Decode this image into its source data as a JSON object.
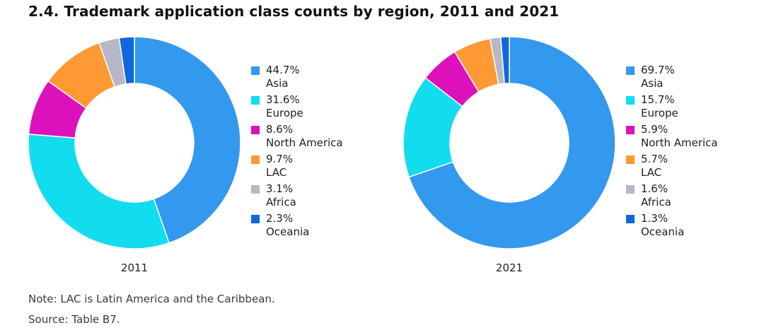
{
  "title": "2.4. Trademark application class counts by region, 2011 and 2021",
  "note": "Note: LAC is Latin America and the Caribbean.",
  "source": "Source: Table B7.",
  "chart_data": [
    {
      "type": "pie",
      "style": "donut",
      "title": "2011",
      "categories": [
        "Asia",
        "Europe",
        "North America",
        "LAC",
        "Africa",
        "Oceania"
      ],
      "values": [
        44.7,
        31.6,
        8.6,
        9.7,
        3.1,
        2.3
      ],
      "labels": [
        "44.7%",
        "31.6%",
        "8.6%",
        "9.7%",
        "3.1%",
        "2.3%"
      ],
      "colors": [
        "#3399ee",
        "#11ddee",
        "#dd11bb",
        "#ff9933",
        "#b7b7c7",
        "#1166dd"
      ],
      "legend": "right"
    },
    {
      "type": "pie",
      "style": "donut",
      "title": "2021",
      "categories": [
        "Asia",
        "Europe",
        "North America",
        "LAC",
        "Africa",
        "Oceania"
      ],
      "values": [
        69.7,
        15.7,
        5.9,
        5.7,
        1.6,
        1.3
      ],
      "labels": [
        "69.7%",
        "15.7%",
        "5.9%",
        "5.7%",
        "1.6%",
        "1.3%"
      ],
      "colors": [
        "#3399ee",
        "#11ddee",
        "#dd11bb",
        "#ff9933",
        "#b7b7c7",
        "#1166dd"
      ],
      "legend": "right"
    }
  ]
}
